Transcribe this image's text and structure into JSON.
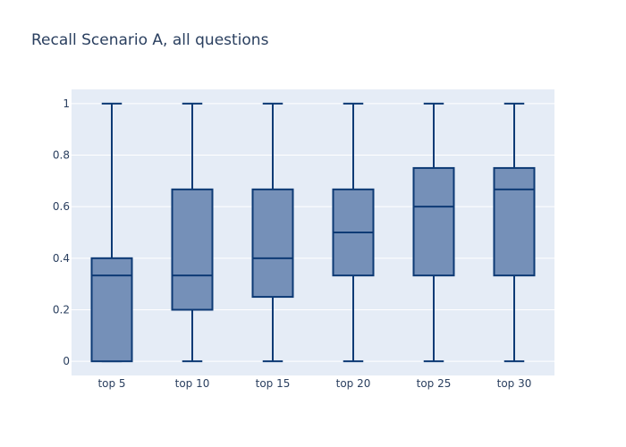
{
  "chart_data": {
    "type": "box",
    "title": "Recall Scenario A, all questions",
    "xlabel": "",
    "ylabel": "",
    "ylim": [
      -0.055,
      1.055
    ],
    "yticks": [
      0,
      0.2,
      0.4,
      0.6,
      0.8,
      1
    ],
    "ytick_labels": [
      "0",
      "0.2",
      "0.4",
      "0.6",
      "0.8",
      "1"
    ],
    "grid": true,
    "colors": {
      "plot_bg": "#e5ecf6",
      "grid": "#ffffff",
      "box_fill": "#7590b8",
      "box_line": "#0d3a75",
      "text": "#2a3f5f"
    },
    "categories": [
      "top 5",
      "top 10",
      "top 15",
      "top 20",
      "top 25",
      "top 30"
    ],
    "boxes": [
      {
        "label": "top 5",
        "min": 0,
        "q1": 0,
        "median": 0.333,
        "q3": 0.4,
        "max": 1
      },
      {
        "label": "top 10",
        "min": 0,
        "q1": 0.2,
        "median": 0.333,
        "q3": 0.667,
        "max": 1
      },
      {
        "label": "top 15",
        "min": 0,
        "q1": 0.25,
        "median": 0.4,
        "q3": 0.667,
        "max": 1
      },
      {
        "label": "top 20",
        "min": 0,
        "q1": 0.333,
        "median": 0.5,
        "q3": 0.667,
        "max": 1
      },
      {
        "label": "top 25",
        "min": 0,
        "q1": 0.333,
        "median": 0.6,
        "q3": 0.75,
        "max": 1
      },
      {
        "label": "top 30",
        "min": 0,
        "q1": 0.333,
        "median": 0.667,
        "q3": 0.75,
        "max": 1
      }
    ]
  }
}
